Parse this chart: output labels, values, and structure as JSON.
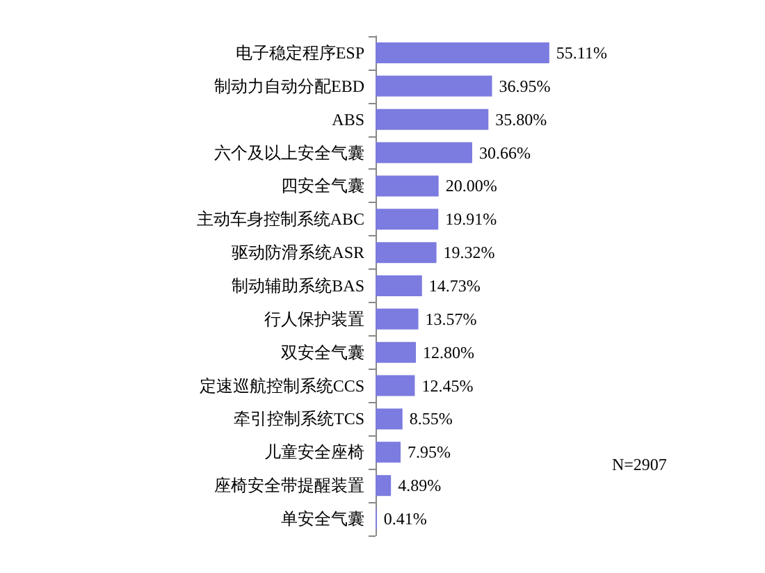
{
  "chart_data": {
    "type": "bar",
    "orientation": "horizontal",
    "categories": [
      "电子稳定程序ESP",
      "制动力自动分配EBD",
      "ABS",
      "六个及以上安全气囊",
      "四安全气囊",
      "主动车身控制系统ABC",
      "驱动防滑系统ASR",
      "制动辅助系统BAS",
      "行人保护装置",
      "双安全气囊",
      "定速巡航控制系统CCS",
      "牵引控制系统TCS",
      "儿童安全座椅",
      "座椅安全带提醒装置",
      "单安全气囊"
    ],
    "values": [
      55.11,
      36.95,
      35.8,
      30.66,
      20.0,
      19.91,
      19.32,
      14.73,
      13.57,
      12.8,
      12.45,
      8.55,
      7.95,
      4.89,
      0.41
    ],
    "value_labels": [
      "55.11%",
      "36.95%",
      "35.80%",
      "30.66%",
      "20.00%",
      "19.91%",
      "19.32%",
      "14.73%",
      "13.57%",
      "12.80%",
      "12.45%",
      "8.55%",
      "7.95%",
      "4.89%",
      "0.41%"
    ],
    "color": "#7b7be0",
    "annotations": [
      "N=2907"
    ],
    "tick_labels": "y"
  }
}
